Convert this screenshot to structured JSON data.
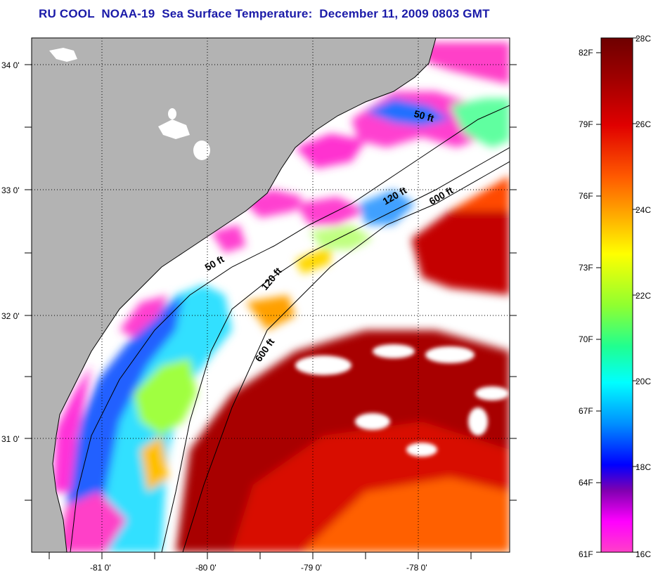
{
  "title": "RU COOL  NOAA-19  Sea Surface Temperature:  December 11, 2009 0803 GMT",
  "map": {
    "latitude_labels": [
      "34 0'",
      "33 0'",
      "32 0'",
      "31 0'"
    ],
    "longitude_labels": [
      "-81 0'",
      "-80 0'",
      "-79 0'",
      "-78 0'"
    ],
    "contour_labels": [
      "50 ft",
      "120 ft",
      "600 ft",
      "50 ft",
      "120 ft",
      "600 ft"
    ],
    "colors": {
      "land": "#b3b3b3",
      "cloud": "#ffffff",
      "coastline": "#000000"
    }
  },
  "colorbar": {
    "fahrenheit_labels": [
      "82F",
      "79F",
      "76F",
      "73F",
      "70F",
      "67F",
      "64F",
      "61F"
    ],
    "celsius_labels": [
      "28C",
      "26C",
      "24C",
      "22C",
      "20C",
      "18C",
      "16C"
    ],
    "gradient_colors": [
      "#7a0000",
      "#c80000",
      "#ff1a00",
      "#ff8000",
      "#ffd000",
      "#ffff00",
      "#80ff40",
      "#00ffb0",
      "#00ffff",
      "#0090ff",
      "#0000ff",
      "#8000c0",
      "#ff00ff",
      "#ff40c0"
    ]
  }
}
